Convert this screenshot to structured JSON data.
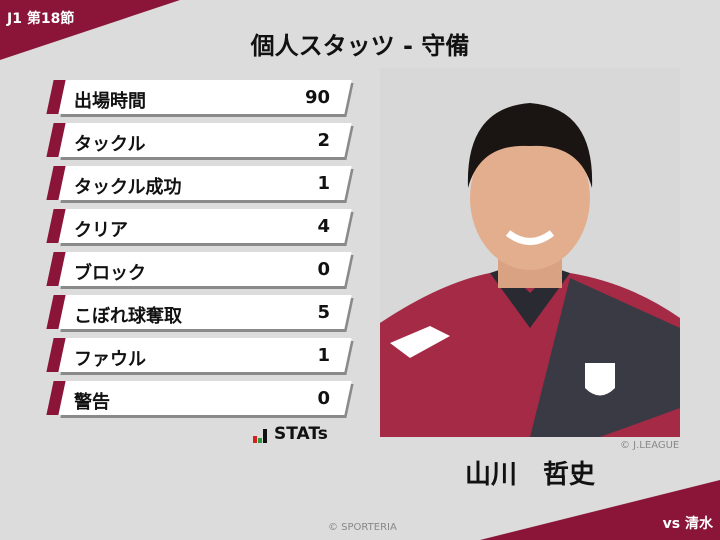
{
  "header": {
    "round": "J1 第18節",
    "title": "個人スタッツ - 守備",
    "opponent": "vs 清水"
  },
  "stats": [
    {
      "label": "出場時間",
      "value": "90"
    },
    {
      "label": "タックル",
      "value": "2"
    },
    {
      "label": "タックル成功",
      "value": "1"
    },
    {
      "label": "クリア",
      "value": "4"
    },
    {
      "label": "ブロック",
      "value": "0"
    },
    {
      "label": "こぼれ球奪取",
      "value": "5"
    },
    {
      "label": "ファウル",
      "value": "1"
    },
    {
      "label": "警告",
      "value": "0"
    }
  ],
  "brand": {
    "stats_logo": "STATs"
  },
  "player": {
    "name": "山川　哲史",
    "photo_credit": "© J.LEAGUE"
  },
  "footer": {
    "credit": "© SPORTERIA"
  },
  "colors": {
    "accent": "#8a1538",
    "background": "#dcdcdc"
  }
}
